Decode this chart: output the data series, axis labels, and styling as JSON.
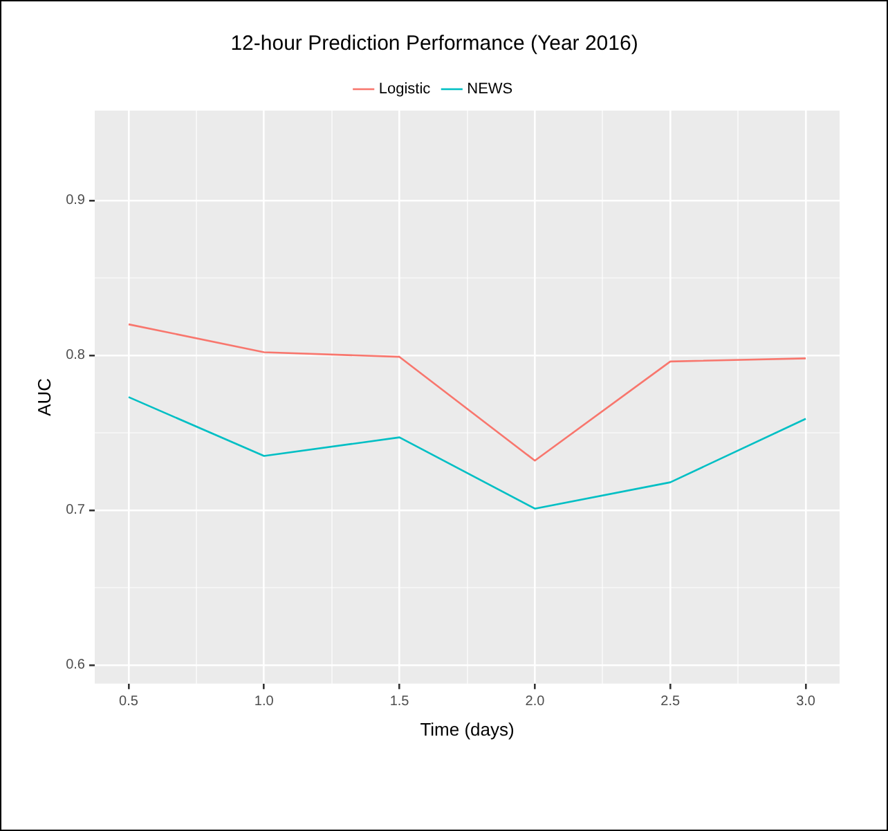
{
  "chart_data": {
    "type": "line",
    "title": "12-hour Prediction Performance (Year 2016)",
    "xlabel": "Time (days)",
    "ylabel": "AUC",
    "x": [
      0.5,
      1.0,
      1.5,
      2.0,
      2.5,
      3.0
    ],
    "series": [
      {
        "name": "Logistic",
        "color": "#f8766d",
        "values": [
          0.82,
          0.802,
          0.799,
          0.732,
          0.796,
          0.798
        ]
      },
      {
        "name": "NEWS",
        "color": "#00bfc4",
        "values": [
          0.773,
          0.735,
          0.747,
          0.701,
          0.718,
          0.759
        ]
      }
    ],
    "xlim": [
      0.375,
      3.125
    ],
    "xticks": [
      {
        "value": 0.5,
        "label": "0.5"
      },
      {
        "value": 0.75,
        "label": null
      },
      {
        "value": 1.0,
        "label": "1.0"
      },
      {
        "value": 1.25,
        "label": null
      },
      {
        "value": 1.5,
        "label": "1.5"
      },
      {
        "value": 1.75,
        "label": null
      },
      {
        "value": 2.0,
        "label": "2.0"
      },
      {
        "value": 2.25,
        "label": null
      },
      {
        "value": 2.5,
        "label": "2.5"
      },
      {
        "value": 2.75,
        "label": null
      },
      {
        "value": 3.0,
        "label": "3.0"
      }
    ],
    "ylim": [
      0.588,
      0.958
    ],
    "yticks": [
      {
        "value": 0.6,
        "label": "0.6"
      },
      {
        "value": 0.65,
        "label": null
      },
      {
        "value": 0.7,
        "label": "0.7"
      },
      {
        "value": 0.75,
        "label": null
      },
      {
        "value": 0.8,
        "label": "0.8"
      },
      {
        "value": 0.85,
        "label": null
      },
      {
        "value": 0.9,
        "label": "0.9"
      }
    ],
    "grid": true,
    "legend": "top",
    "marker": "none",
    "line_style": "solid"
  }
}
